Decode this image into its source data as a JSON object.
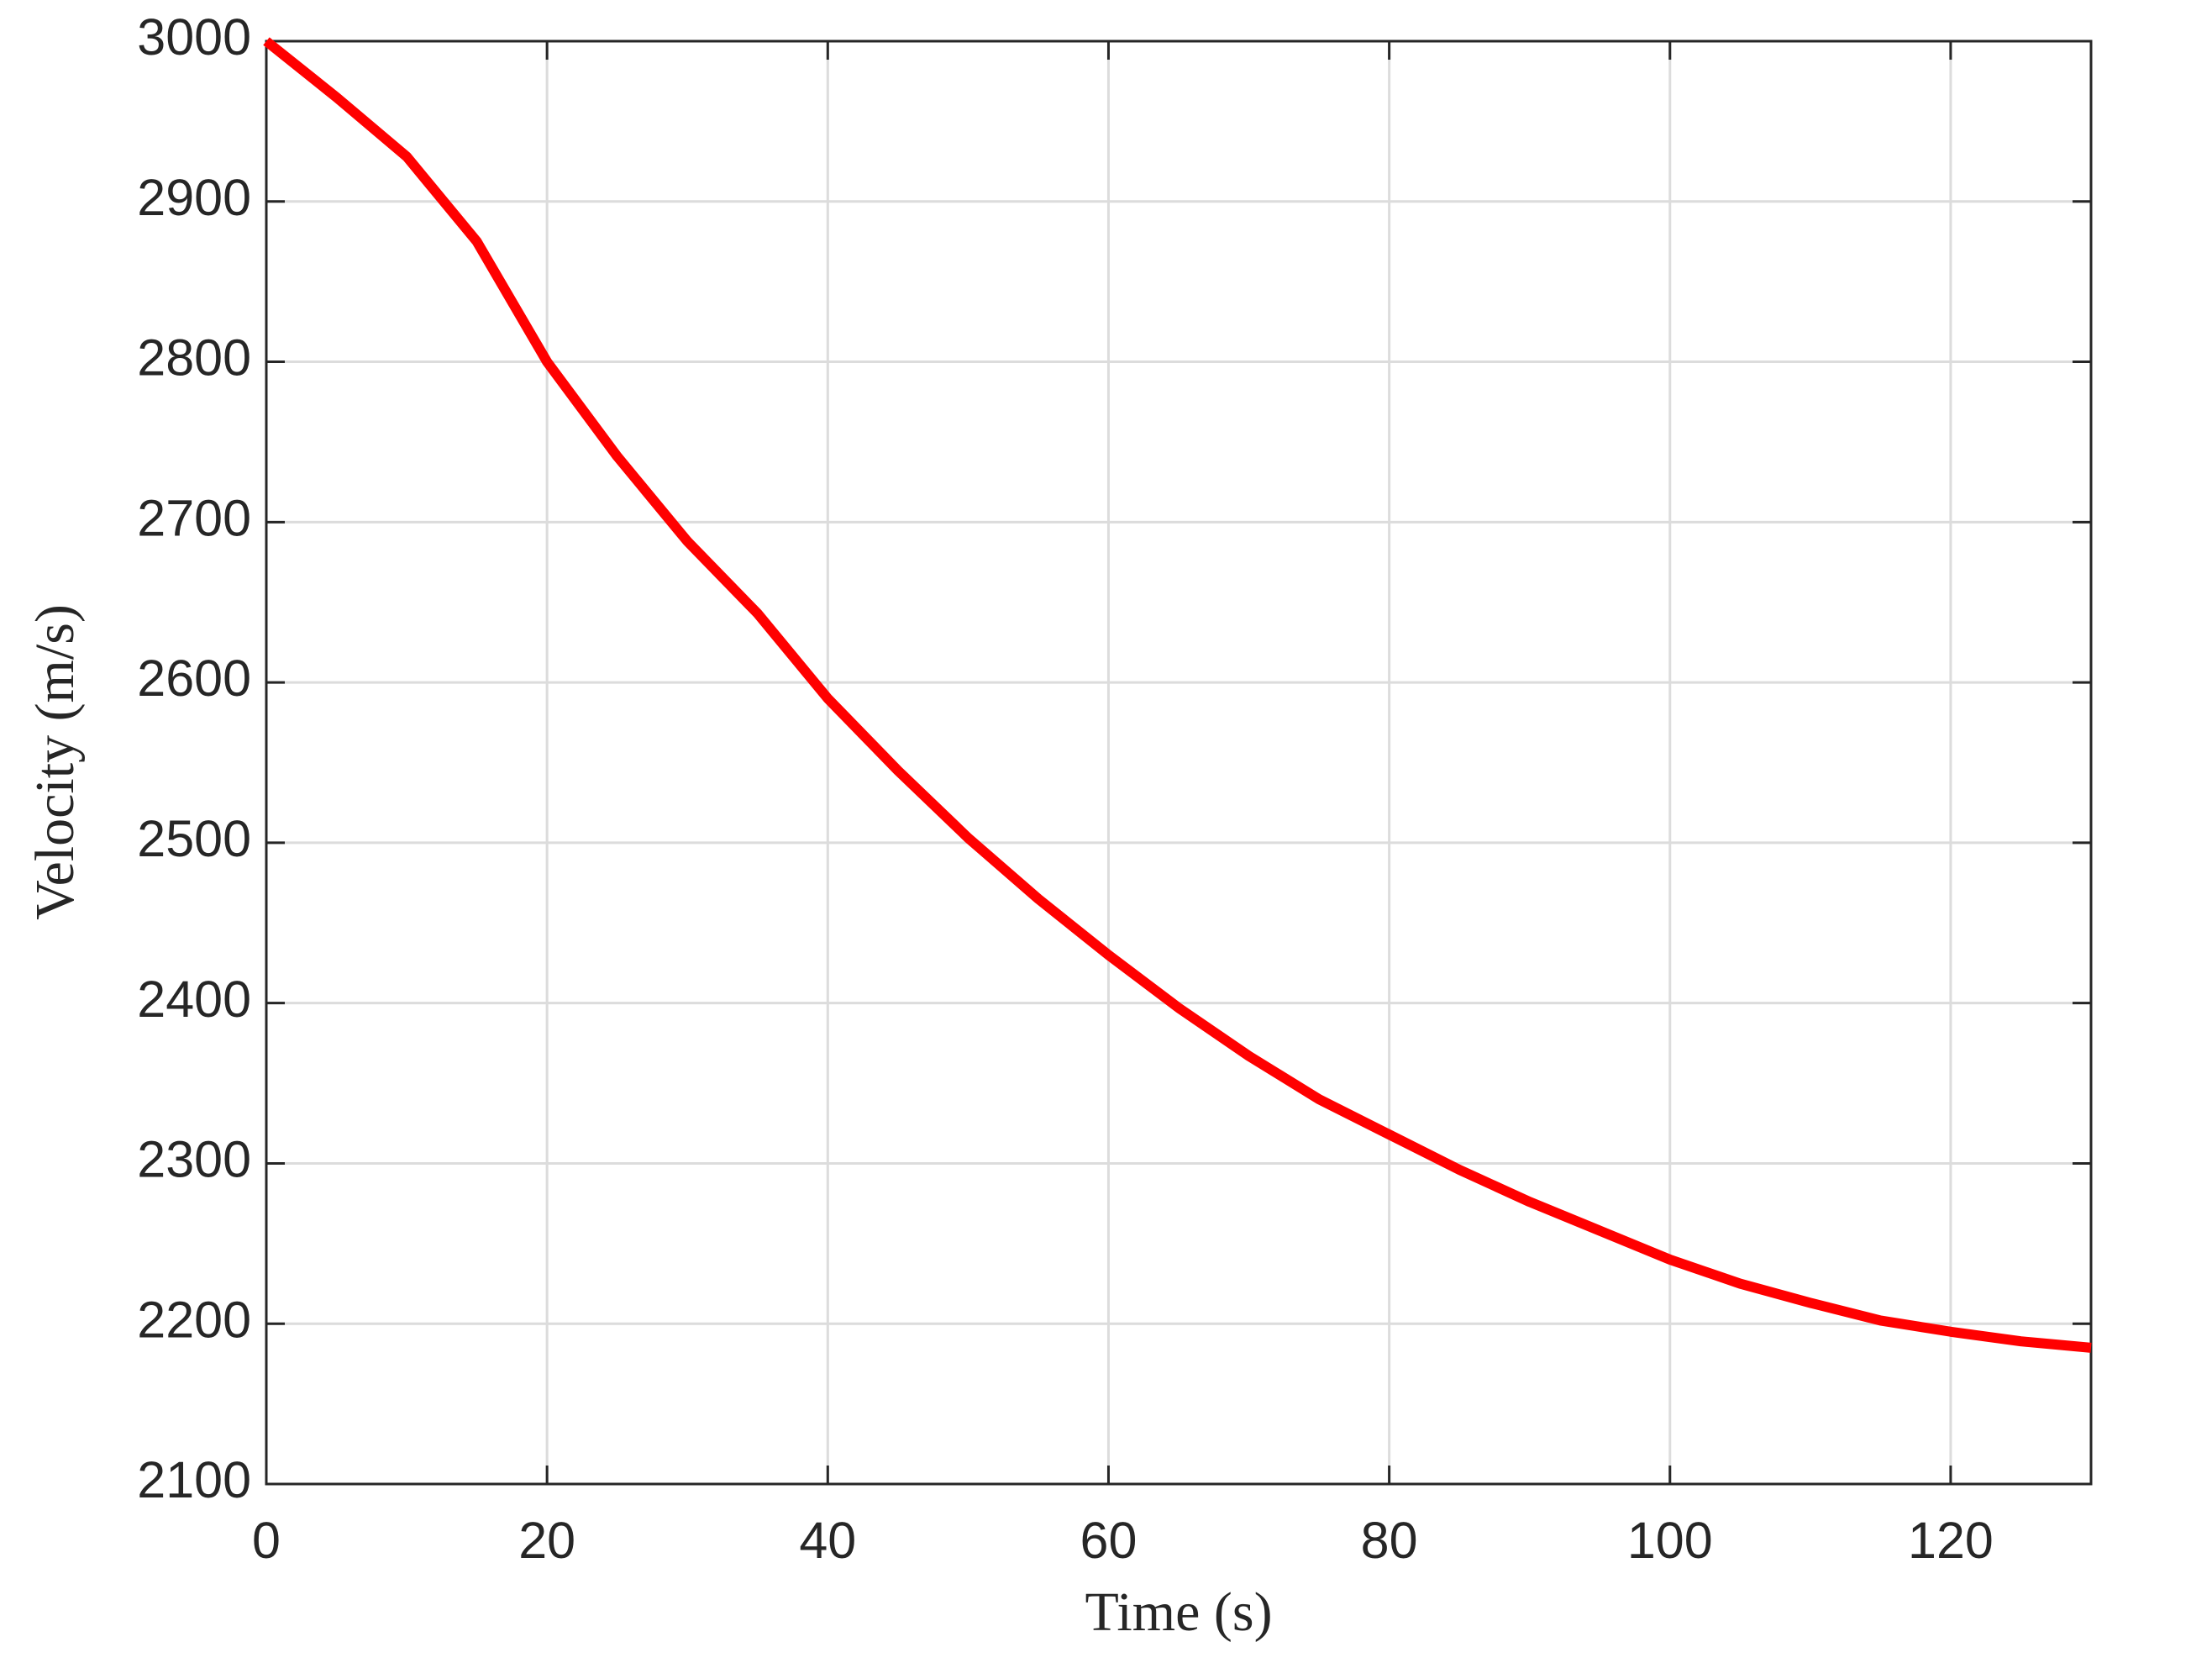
{
  "chart_data": {
    "type": "line",
    "xlabel": "Time (s)",
    "ylabel": "Velocity (m/s)",
    "x": [
      0,
      5,
      10,
      15,
      20,
      25,
      30,
      35,
      40,
      45,
      50,
      55,
      60,
      65,
      70,
      75,
      80,
      85,
      90,
      95,
      100,
      105,
      110,
      115,
      120,
      125,
      130
    ],
    "series": [
      {
        "name": "Velocity",
        "color": "#ff0000",
        "values": [
          3000,
          2965,
          2928,
          2875,
          2800,
          2741,
          2688,
          2643,
          2590,
          2545,
          2503,
          2465,
          2430,
          2397,
          2367,
          2340,
          2318,
          2296,
          2276,
          2258,
          2240,
          2225,
          2213,
          2202,
          2195,
          2189,
          2185
        ]
      }
    ],
    "xlim": [
      0,
      130
    ],
    "ylim": [
      2100,
      3000
    ],
    "xticks": [
      0,
      20,
      40,
      60,
      80,
      100,
      120
    ],
    "yticks": [
      2100,
      2200,
      2300,
      2400,
      2500,
      2600,
      2700,
      2800,
      2900,
      3000
    ],
    "grid": true
  }
}
